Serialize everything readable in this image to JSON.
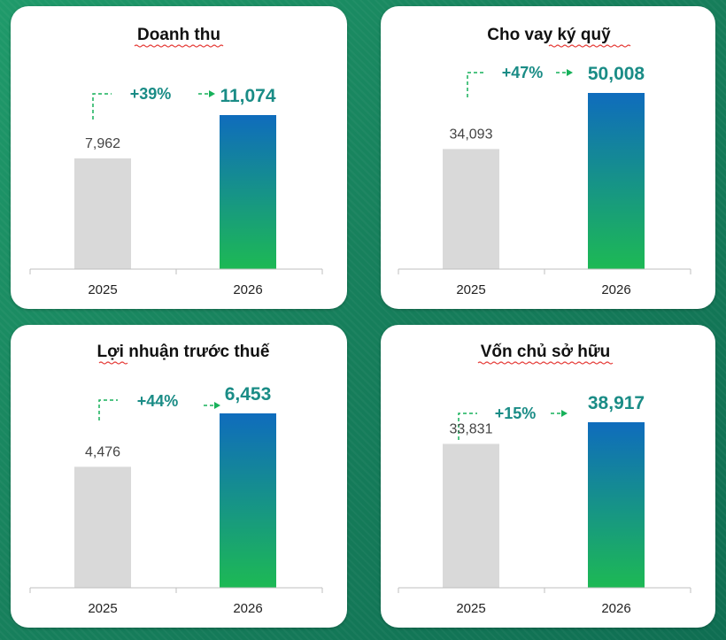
{
  "chart_data": [
    {
      "type": "bar",
      "title": "Doanh thu",
      "categories": [
        "2025",
        "2026"
      ],
      "values": [
        7962,
        11074
      ],
      "value_labels": [
        "7,962",
        "11,074"
      ],
      "change_label": "+39%",
      "colors": {
        "old": "#d9d9d9",
        "new_top": "#0f6cbd",
        "new_bottom": "#1db954"
      }
    },
    {
      "type": "bar",
      "title": "Cho vay ký quỹ",
      "categories": [
        "2025",
        "2026"
      ],
      "values": [
        34093,
        50008
      ],
      "value_labels": [
        "34,093",
        "50,008"
      ],
      "change_label": "+47%",
      "colors": {
        "old": "#d9d9d9",
        "new_top": "#0f6cbd",
        "new_bottom": "#1db954"
      }
    },
    {
      "type": "bar",
      "title": "Lợi nhuận trước thuế",
      "categories": [
        "2025",
        "2026"
      ],
      "values": [
        4476,
        6453
      ],
      "value_labels": [
        "4,476",
        "6,453"
      ],
      "change_label": "+44%",
      "colors": {
        "old": "#d9d9d9",
        "new_top": "#0f6cbd",
        "new_bottom": "#1db954"
      }
    },
    {
      "type": "bar",
      "title": "Vốn chủ sở hữu",
      "categories": [
        "2025",
        "2026"
      ],
      "values": [
        33831,
        38917
      ],
      "value_labels": [
        "33,831",
        "38,917"
      ],
      "change_label": "+15%",
      "colors": {
        "old": "#d9d9d9",
        "new_top": "#0f6cbd",
        "new_bottom": "#1db954"
      }
    }
  ]
}
